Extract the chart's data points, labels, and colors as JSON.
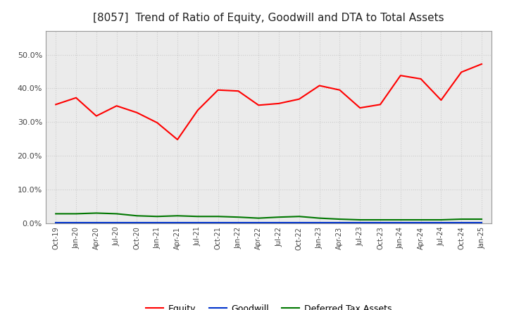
{
  "title": "[8057]  Trend of Ratio of Equity, Goodwill and DTA to Total Assets",
  "x_labels": [
    "Oct-19",
    "Jan-20",
    "Apr-20",
    "Jul-20",
    "Oct-20",
    "Jan-21",
    "Apr-21",
    "Jul-21",
    "Oct-21",
    "Jan-22",
    "Apr-22",
    "Jul-22",
    "Oct-22",
    "Jan-23",
    "Apr-23",
    "Jul-23",
    "Oct-23",
    "Jan-24",
    "Apr-24",
    "Jul-24",
    "Oct-24",
    "Jan-25"
  ],
  "equity": [
    0.352,
    0.372,
    0.318,
    0.348,
    0.328,
    0.298,
    0.248,
    0.335,
    0.395,
    0.392,
    0.35,
    0.355,
    0.368,
    0.408,
    0.395,
    0.342,
    0.352,
    0.438,
    0.428,
    0.365,
    0.448,
    0.472
  ],
  "goodwill": [
    0.001,
    0.001,
    0.001,
    0.001,
    0.001,
    0.001,
    0.001,
    0.001,
    0.001,
    0.001,
    0.001,
    0.001,
    0.001,
    0.001,
    0.001,
    0.001,
    0.001,
    0.001,
    0.001,
    0.001,
    0.001,
    0.001
  ],
  "dta": [
    0.028,
    0.028,
    0.03,
    0.028,
    0.022,
    0.02,
    0.022,
    0.02,
    0.02,
    0.018,
    0.015,
    0.018,
    0.02,
    0.015,
    0.012,
    0.01,
    0.01,
    0.01,
    0.01,
    0.01,
    0.012,
    0.012
  ],
  "equity_color": "#ff0000",
  "goodwill_color": "#0033cc",
  "dta_color": "#007700",
  "bg_color": "#ffffff",
  "plot_bg_color": "#ebebeb",
  "ylim": [
    0.0,
    0.57
  ],
  "yticks": [
    0.0,
    0.1,
    0.2,
    0.3,
    0.4,
    0.5
  ],
  "legend_labels": [
    "Equity",
    "Goodwill",
    "Deferred Tax Assets"
  ],
  "title_fontsize": 11,
  "grid_color": "#cccccc",
  "line_width": 1.5
}
